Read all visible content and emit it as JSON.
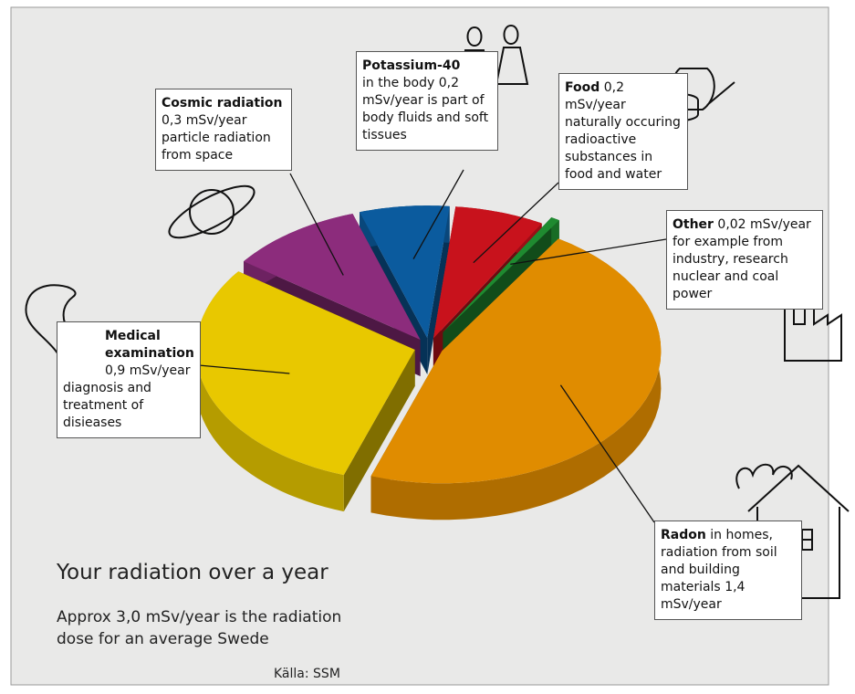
{
  "chart_data": {
    "type": "pie",
    "title": "Your radiation over a year",
    "subtitle": "Approx 3,0 mSv/year is the radiation dose for an average Swede",
    "source": "Källa: SSM",
    "categories": [
      "Potassium-40",
      "Food",
      "Other",
      "Radon",
      "Medical examination",
      "Cosmic radiation"
    ],
    "values": [
      0.2,
      0.2,
      0.02,
      1.4,
      0.9,
      0.3
    ],
    "value_labels": [
      "0,2 mSv/year",
      "0,2 mSv/year",
      "0,02 mSv/year",
      "1,4 mSv/year",
      "0,9 mSv/year",
      "0,3 mSv/year"
    ],
    "colors": [
      "#0b5b9e",
      "#c8121c",
      "#1f8a30",
      "#e08c00",
      "#e8c800",
      "#8c2c7c"
    ],
    "callout_text": [
      {
        "pre": "in the body",
        "post": "is part of body fluids and soft tissues"
      },
      {
        "post": "naturally occuring radioactive substances in food and water"
      },
      {
        "post": "for example from industry, research nuclear and coal power"
      },
      {
        "pre": "in homes, radiation from soil and building materials"
      },
      {
        "post": "diagnosis and treatment of disieases"
      },
      {
        "post": "particle radiation from space"
      }
    ]
  }
}
